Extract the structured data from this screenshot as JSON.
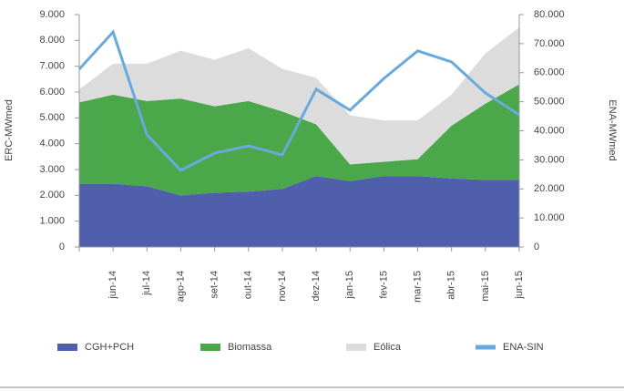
{
  "chart_data": {
    "type": "area",
    "y_label": "ERC-MWmed",
    "y2_label": "ENA-MWmed",
    "categories": [
      null,
      "jun-14",
      "jul-14",
      "ago-14",
      "set-14",
      "out-14",
      "nov-14",
      "dez-14",
      "jan-15",
      "fev-15",
      "mar-15",
      "abr-15",
      "mai-15",
      "jun-15"
    ],
    "series": [
      {
        "name": "CGH+PCH",
        "type": "area",
        "color": "#4f5fab",
        "values": [
          2450,
          2450,
          2350,
          2000,
          2100,
          2150,
          2250,
          2750,
          2550,
          2750,
          2750,
          2650,
          2600,
          2600
        ]
      },
      {
        "name": "Biomassa",
        "type": "area",
        "color": "#4aa84a",
        "values": [
          3150,
          3450,
          3300,
          3750,
          3350,
          3500,
          3000,
          2000,
          650,
          550,
          650,
          2050,
          2950,
          3700
        ]
      },
      {
        "name": "Eólica",
        "type": "area",
        "color": "#dcdcdc",
        "values": [
          500,
          1200,
          1450,
          1850,
          1800,
          2050,
          1650,
          1800,
          1900,
          1600,
          1500,
          1200,
          1950,
          2200
        ]
      },
      {
        "name": "ENA-SIN",
        "type": "line",
        "axis": "y2",
        "color": "#6aa9dc",
        "values": [
          61200,
          74000,
          38600,
          26400,
          32300,
          34800,
          31700,
          54300,
          47100,
          58000,
          67500,
          63700,
          53000,
          45500
        ]
      }
    ],
    "ylim": [
      0,
      9000
    ],
    "yticks": [
      0,
      {
        "value": 1000,
        "label": "1.000"
      },
      {
        "value": 2000,
        "label": "2.000"
      },
      {
        "value": 3000,
        "label": "3.000"
      },
      {
        "value": 4000,
        "label": "4.000"
      },
      {
        "value": 5000,
        "label": "5.000"
      },
      {
        "value": 6000,
        "label": "6.000"
      },
      {
        "value": 7000,
        "label": "7.000"
      },
      {
        "value": 8000,
        "label": "8.000"
      },
      {
        "value": 9000,
        "label": "9.000"
      }
    ],
    "y2lim": [
      0,
      80000
    ],
    "y2ticks": [
      0,
      {
        "value": 10000,
        "label": "10.000"
      },
      {
        "value": 20000,
        "label": "20.000"
      },
      {
        "value": 30000,
        "label": "30.000"
      },
      {
        "value": 40000,
        "label": "40.000"
      },
      {
        "value": 50000,
        "label": "50.000"
      },
      {
        "value": 60000,
        "label": "60.000"
      },
      {
        "value": 70000,
        "label": "70.000"
      },
      {
        "value": 80000,
        "label": "80.000"
      }
    ],
    "legend": "bottom"
  }
}
